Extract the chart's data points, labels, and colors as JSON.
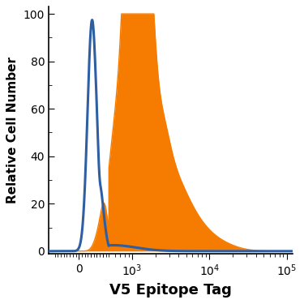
{
  "xlabel": "V5 Epitope Tag",
  "ylabel": "Relative Cell Number",
  "ylim": [
    -1,
    103
  ],
  "yticks": [
    0,
    20,
    40,
    60,
    80,
    100
  ],
  "blue_color": "#2e5fa3",
  "orange_color": "#f57c00",
  "blue_linewidth": 2.2,
  "orange_linewidth": 1.0,
  "background_color": "#ffffff",
  "xlabel_fontsize": 13,
  "ylabel_fontsize": 11,
  "tick_fontsize": 10,
  "linthresh": 500,
  "linscale": 0.35
}
